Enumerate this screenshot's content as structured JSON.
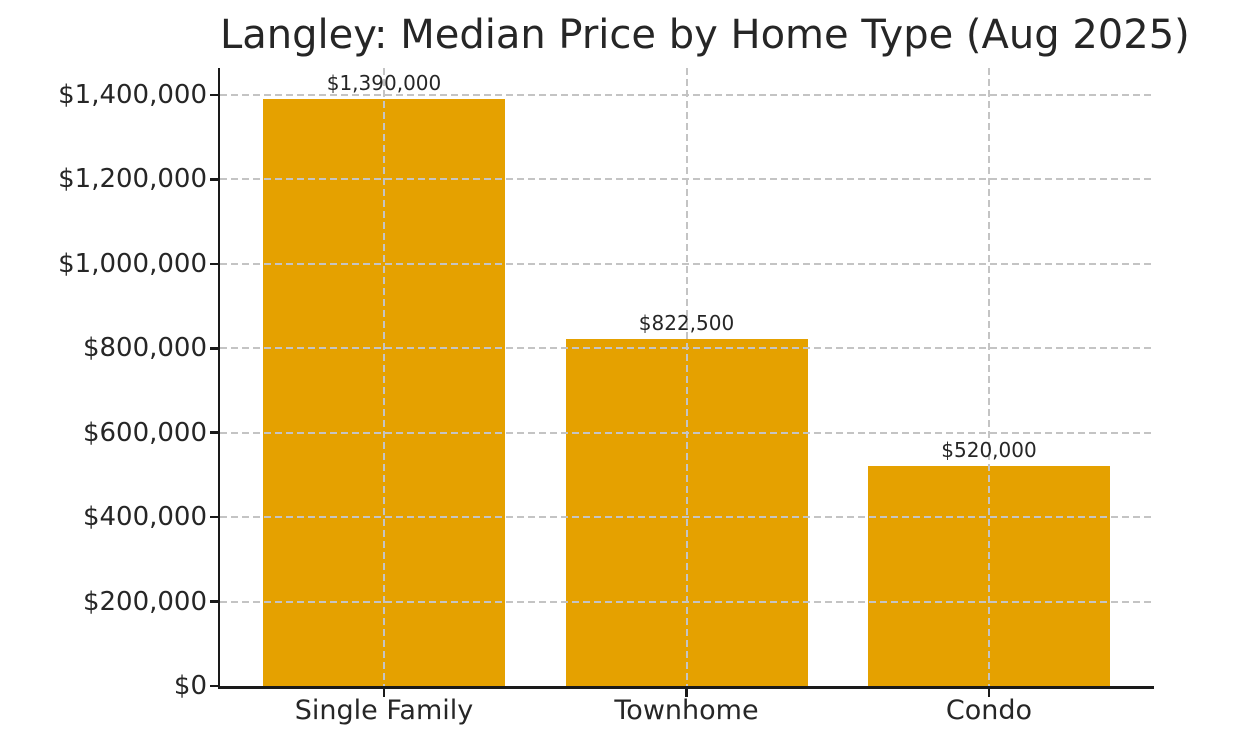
{
  "chart_data": {
    "type": "bar",
    "title": "Langley: Median Price by Home Type (Aug 2025)",
    "categories": [
      "Single Family",
      "Townhome",
      "Condo"
    ],
    "values": [
      1390000,
      822500,
      520000
    ],
    "value_labels": [
      "$1,390,000",
      "$822,500",
      "$520,000"
    ],
    "xlabel": "",
    "ylabel": "",
    "ylim": [
      0,
      1400000
    ],
    "yticks": [
      0,
      200000,
      400000,
      600000,
      800000,
      1000000,
      1200000,
      1400000
    ],
    "ytick_labels": [
      "$0",
      "$200,000",
      "$400,000",
      "$600,000",
      "$800,000",
      "$1,000,000",
      "$1,200,000",
      "$1,400,000"
    ],
    "grid": {
      "style": "dashed",
      "horizontal": true,
      "vertical": true,
      "drawn_above_bars": true
    },
    "legend_position": "none",
    "bar_color": "#E5A100",
    "grid_color": "#C4C4C4",
    "axis_color": "#1A1A1A",
    "text_color": "#262626",
    "background_color": "#FFFFFF"
  }
}
